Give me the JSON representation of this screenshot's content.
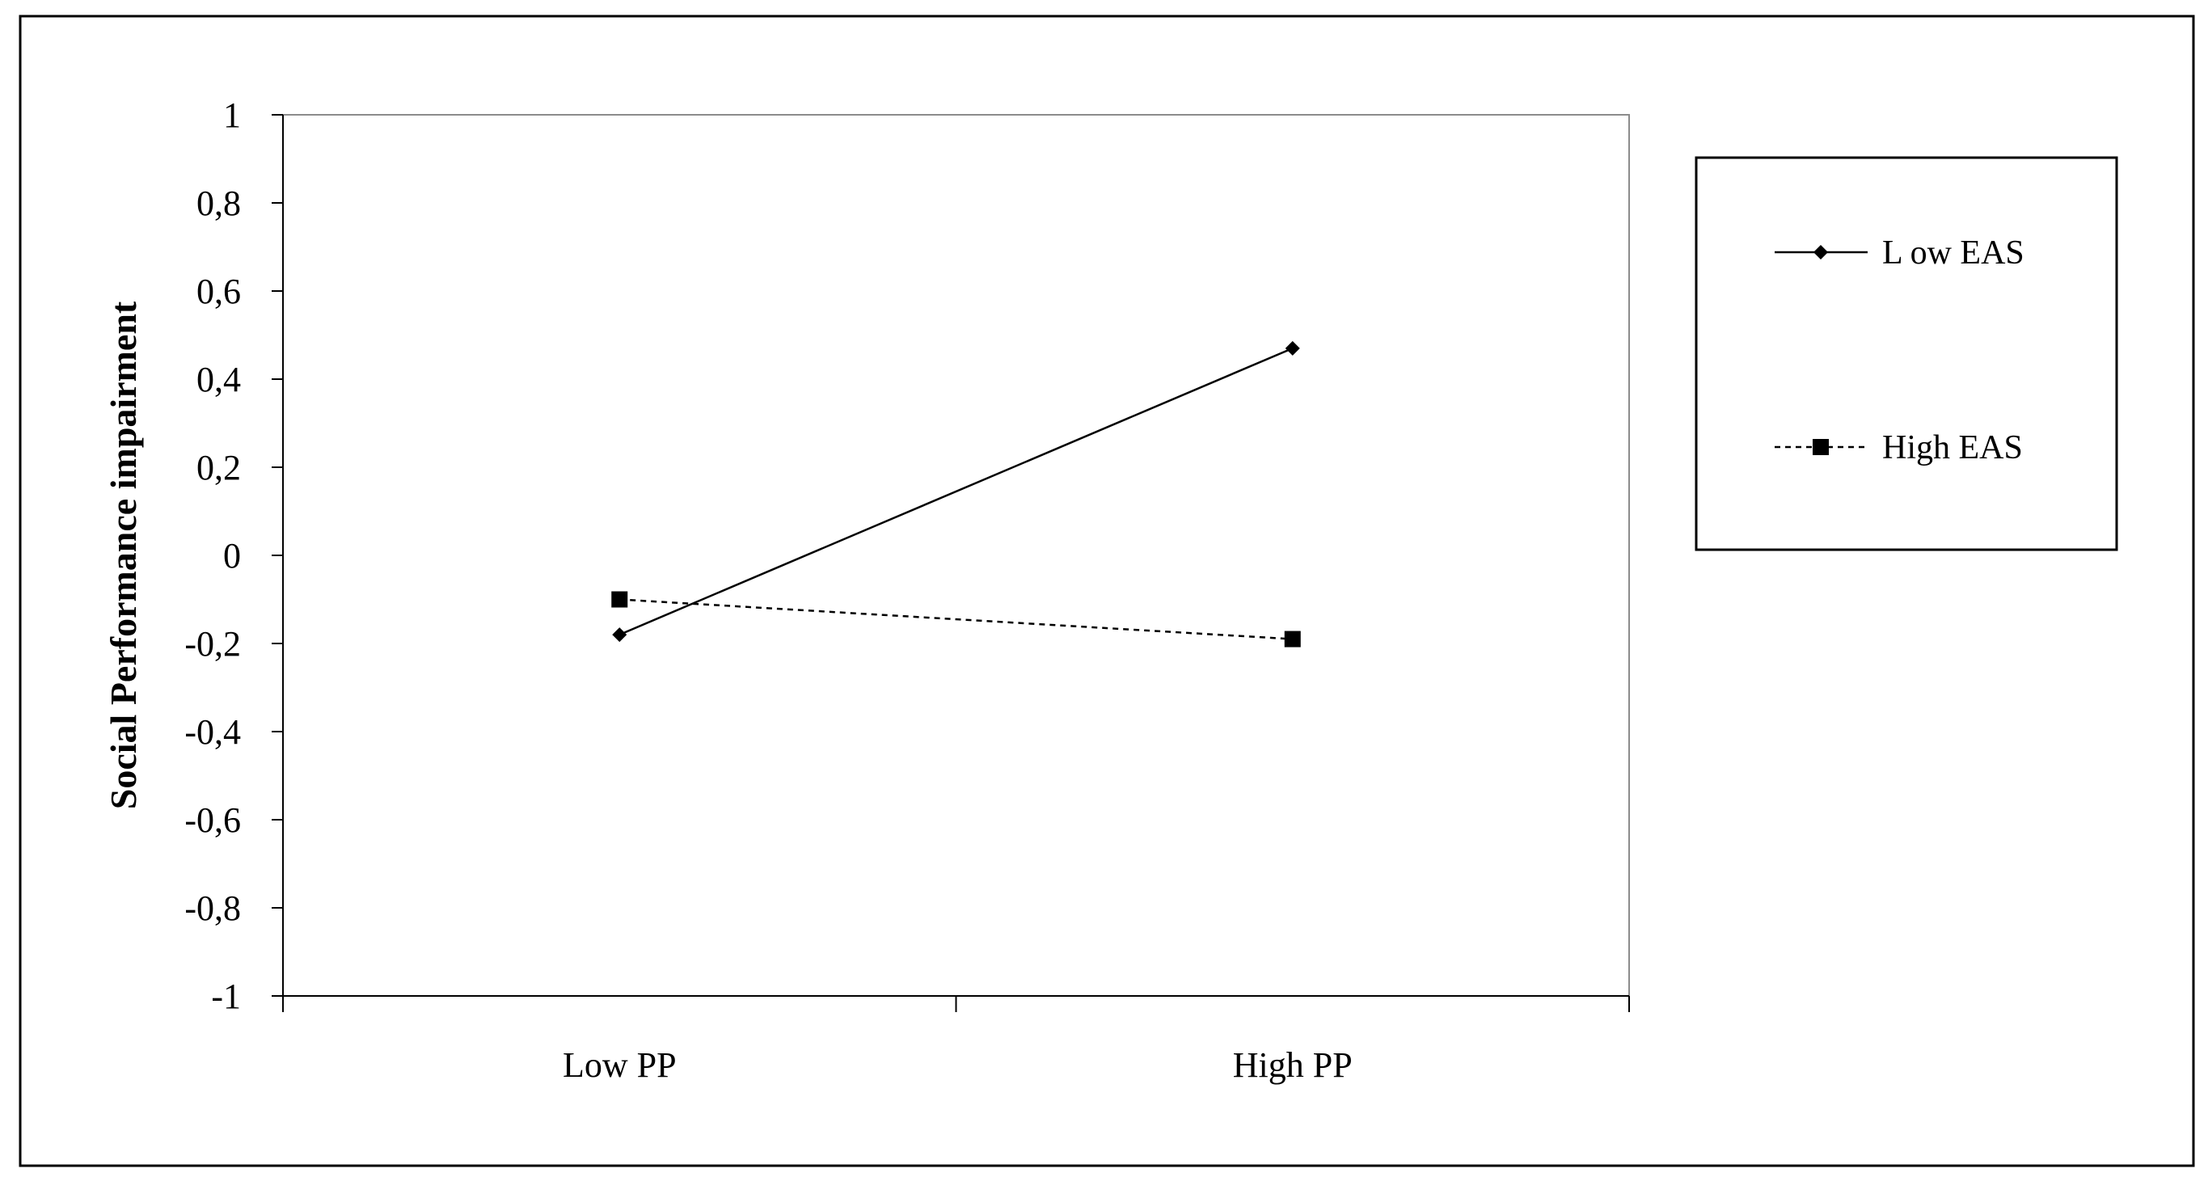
{
  "chart_data": {
    "type": "line",
    "categories": [
      "Low PP",
      "High PP"
    ],
    "series": [
      {
        "name": "L ow EAS",
        "values": [
          -0.18,
          0.47
        ],
        "line": "solid",
        "marker": "diamond",
        "color": "#000000"
      },
      {
        "name": "High EAS",
        "values": [
          -0.1,
          -0.19
        ],
        "line": "dashed",
        "marker": "square",
        "color": "#000000"
      }
    ],
    "ylabel": "Social Performance impairment",
    "ylim": [
      -1,
      1
    ],
    "yticks": [
      "1",
      "0,8",
      "0,6",
      "0,4",
      "0,2",
      "0",
      "-0,2",
      "-0,4",
      "-0,6",
      "-0,8",
      "-1"
    ],
    "grid": false,
    "legend": "right"
  }
}
